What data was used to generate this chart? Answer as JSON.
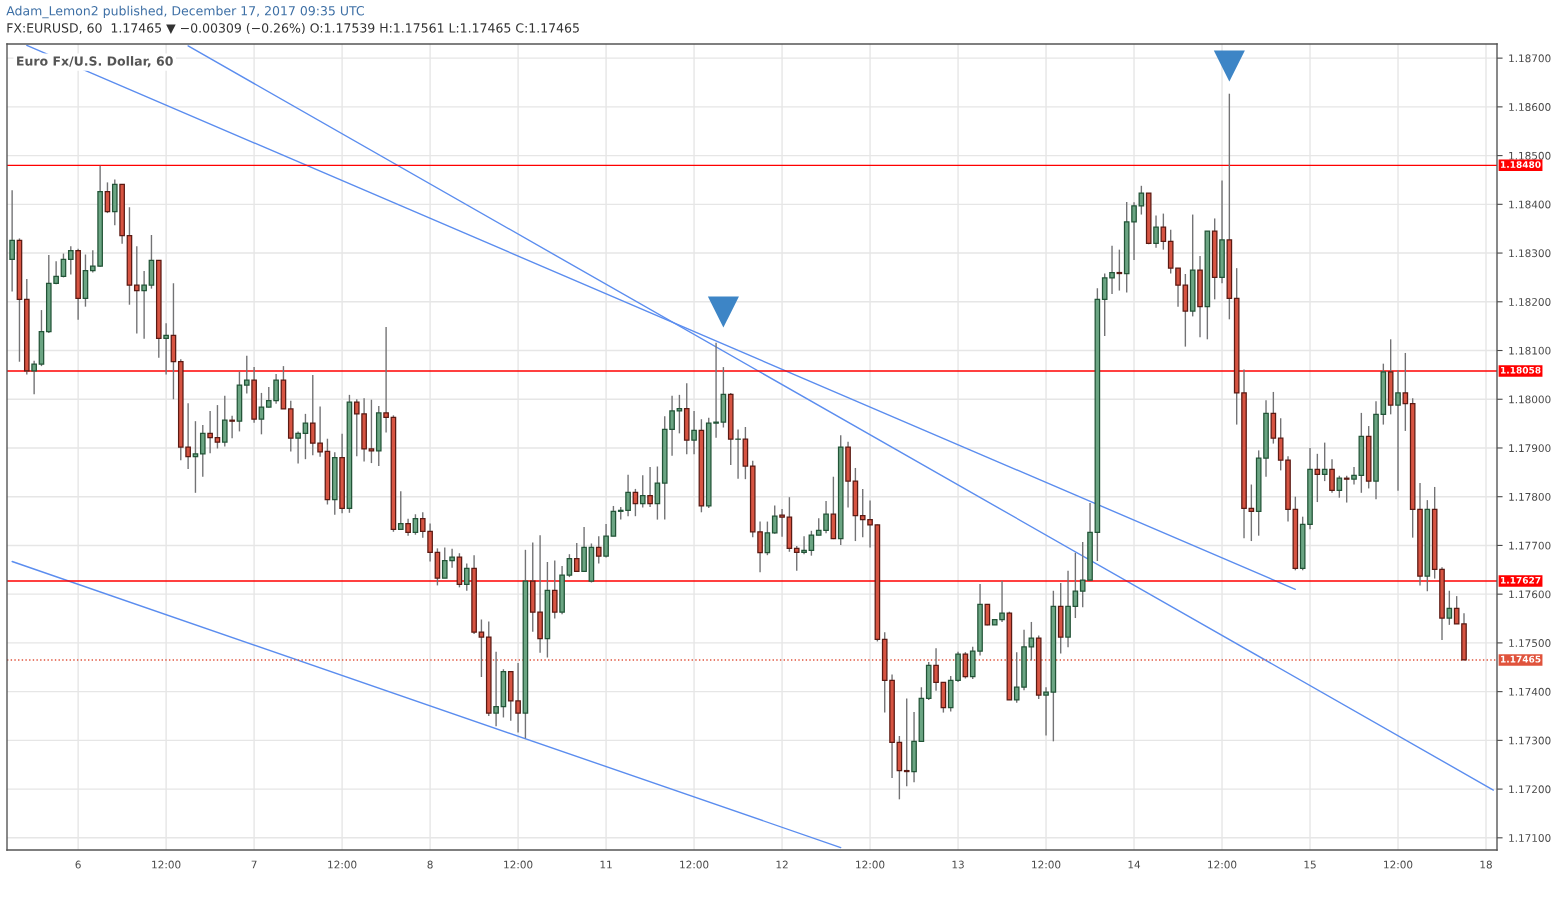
{
  "chart_data": {
    "type": "candlestick",
    "title": "Adam_Lemon2 published, December 17, 2017 09:35 UTC",
    "subtitle": "FX:EURUSD, 60  1.17465 ▼ −0.00309 (−0.26%) O:1.17539 H:1.17561 L:1.17465 C:1.17465",
    "annotations": [
      "Euro Fx/U.S. Dollar, 60"
    ],
    "categories": [
      null,
      null,
      null,
      null,
      null,
      null,
      null,
      null,
      null,
      "6",
      null,
      null,
      null,
      null,
      null,
      null,
      null,
      null,
      null,
      null,
      null,
      "12:00",
      null,
      null,
      null,
      null,
      null,
      null,
      null,
      null,
      null,
      null,
      null,
      "7",
      null,
      null,
      null,
      null,
      null,
      null,
      null,
      null,
      null,
      null,
      null,
      "12:00",
      null,
      null,
      null,
      null,
      null,
      null,
      null,
      null,
      null,
      null,
      null,
      "8",
      null,
      null,
      null,
      null,
      null,
      null,
      null,
      null,
      null,
      null,
      null,
      "12:00",
      null,
      null,
      null,
      null,
      null,
      null,
      null,
      null,
      null,
      null,
      null,
      "11",
      null,
      null,
      null,
      null,
      null,
      null,
      null,
      null,
      null,
      null,
      null,
      "12:00",
      null,
      null,
      null,
      null,
      null,
      null,
      null,
      null,
      null,
      null,
      null,
      "12",
      null,
      null,
      null,
      null,
      null,
      null,
      null,
      null,
      null,
      null,
      null,
      "12:00",
      null,
      null,
      null,
      null,
      null,
      null,
      null,
      null,
      null,
      null,
      null,
      "13",
      null,
      null,
      null,
      null,
      null,
      null,
      null,
      null,
      null,
      null,
      null,
      "12:00",
      null,
      null,
      null,
      null,
      null,
      null,
      null,
      null,
      null,
      null,
      null,
      "14",
      null,
      null,
      null,
      null,
      null,
      null,
      null,
      null,
      null,
      null,
      null,
      "12:00",
      null,
      null,
      null,
      null,
      null,
      null,
      null,
      null,
      null,
      null,
      null,
      "15",
      null,
      null,
      null,
      null,
      null,
      null,
      null,
      null,
      null,
      null,
      null,
      "12:00",
      null,
      null,
      null,
      null,
      null,
      null,
      null,
      null,
      null,
      null,
      null,
      "18",
      null
    ],
    "ohlc": [
      [
        1.18287,
        1.18429,
        1.18221,
        1.18326
      ],
      [
        1.18326,
        1.1833,
        1.18077,
        1.18205
      ],
      [
        1.18205,
        1.18247,
        1.18051,
        1.18058
      ],
      [
        1.18058,
        1.18079,
        1.1801,
        1.18072
      ],
      [
        1.18072,
        1.18183,
        1.18068,
        1.18139
      ],
      [
        1.18139,
        1.18296,
        1.18136,
        1.18238
      ],
      [
        1.18238,
        1.18283,
        1.18236,
        1.18252
      ],
      [
        1.18252,
        1.18299,
        1.1825,
        1.18287
      ],
      [
        1.18287,
        1.18314,
        1.18256,
        1.18305
      ],
      [
        1.18305,
        1.18309,
        1.18163,
        1.18207
      ],
      [
        1.18207,
        1.18297,
        1.1819,
        1.18264
      ],
      [
        1.18264,
        1.18306,
        1.1826,
        1.18273
      ],
      [
        1.18273,
        1.18479,
        1.18272,
        1.18426
      ],
      [
        1.18426,
        1.18445,
        1.18382,
        1.18385
      ],
      [
        1.18385,
        1.18451,
        1.18357,
        1.18441
      ],
      [
        1.18441,
        1.18441,
        1.18319,
        1.18336
      ],
      [
        1.18336,
        1.18394,
        1.18194,
        1.18234
      ],
      [
        1.18234,
        1.18314,
        1.18135,
        1.18223
      ],
      [
        1.18223,
        1.18263,
        1.18124,
        1.18234
      ],
      [
        1.18234,
        1.18337,
        1.18227,
        1.18285
      ],
      [
        1.18285,
        1.18285,
        1.18085,
        1.18125
      ],
      [
        1.18125,
        1.18156,
        1.18051,
        1.18131
      ],
      [
        1.18131,
        1.18238,
        1.18,
        1.18077
      ],
      [
        1.18077,
        1.18082,
        1.17875,
        1.17902
      ],
      [
        1.17902,
        1.17992,
        1.17857,
        1.17882
      ],
      [
        1.17882,
        1.17955,
        1.17808,
        1.17888
      ],
      [
        1.17888,
        1.17947,
        1.17841,
        1.1793
      ],
      [
        1.1793,
        1.17976,
        1.17889,
        1.17921
      ],
      [
        1.17921,
        1.17988,
        1.17899,
        1.17912
      ],
      [
        1.17912,
        1.18007,
        1.17903,
        1.17957
      ],
      [
        1.17957,
        1.17966,
        1.1792,
        1.17955
      ],
      [
        1.17955,
        1.18057,
        1.17934,
        1.18029
      ],
      [
        1.18029,
        1.18089,
        1.18012,
        1.18039
      ],
      [
        1.18039,
        1.18066,
        1.17952,
        1.17959
      ],
      [
        1.17959,
        1.18013,
        1.17928,
        1.17984
      ],
      [
        1.17984,
        1.18025,
        1.17983,
        1.17997
      ],
      [
        1.17997,
        1.18052,
        1.17991,
        1.18039
      ],
      [
        1.18039,
        1.18068,
        1.1798,
        1.1798
      ],
      [
        1.1798,
        1.17997,
        1.17893,
        1.1792
      ],
      [
        1.1792,
        1.17934,
        1.17868,
        1.1793
      ],
      [
        1.1793,
        1.1797,
        1.17877,
        1.17951
      ],
      [
        1.17951,
        1.1805,
        1.17885,
        1.1791
      ],
      [
        1.1791,
        1.17985,
        1.17882,
        1.17892
      ],
      [
        1.17893,
        1.17919,
        1.17784,
        1.17794
      ],
      [
        1.17794,
        1.17891,
        1.17763,
        1.1788
      ],
      [
        1.1788,
        1.17929,
        1.17766,
        1.17776
      ],
      [
        1.17776,
        1.18009,
        1.17767,
        1.17994
      ],
      [
        1.17994,
        1.18,
        1.17883,
        1.1797
      ],
      [
        1.1797,
        1.18002,
        1.17872,
        1.17898
      ],
      [
        1.17898,
        1.17999,
        1.17869,
        1.17894
      ],
      [
        1.17894,
        1.17986,
        1.17863,
        1.17972
      ],
      [
        1.17972,
        1.18148,
        1.17932,
        1.17963
      ],
      [
        1.17963,
        1.17967,
        1.17728,
        1.17733
      ],
      [
        1.17733,
        1.17811,
        1.17733,
        1.17745
      ],
      [
        1.17745,
        1.17755,
        1.1772,
        1.17727
      ],
      [
        1.17727,
        1.17764,
        1.17722,
        1.17755
      ],
      [
        1.17755,
        1.17768,
        1.17716,
        1.17729
      ],
      [
        1.17729,
        1.17745,
        1.17667,
        1.17686
      ],
      [
        1.17686,
        1.17694,
        1.17618,
        1.17633
      ],
      [
        1.17633,
        1.17696,
        1.17633,
        1.17669
      ],
      [
        1.17669,
        1.17693,
        1.17654,
        1.17676
      ],
      [
        1.17676,
        1.17684,
        1.17614,
        1.1762
      ],
      [
        1.1762,
        1.17663,
        1.17607,
        1.17653
      ],
      [
        1.17653,
        1.1768,
        1.17518,
        1.17522
      ],
      [
        1.17522,
        1.17548,
        1.1743,
        1.17512
      ],
      [
        1.17512,
        1.17544,
        1.1735,
        1.17356
      ],
      [
        1.17356,
        1.17482,
        1.17329,
        1.17369
      ],
      [
        1.17369,
        1.17446,
        1.17347,
        1.17441
      ],
      [
        1.17441,
        1.17441,
        1.1734,
        1.17381
      ],
      [
        1.17381,
        1.17459,
        1.17316,
        1.17356
      ],
      [
        1.17356,
        1.17691,
        1.17304,
        1.17627
      ],
      [
        1.17627,
        1.17706,
        1.17523,
        1.17563
      ],
      [
        1.17563,
        1.17721,
        1.1748,
        1.17509
      ],
      [
        1.17509,
        1.17666,
        1.1747,
        1.17608
      ],
      [
        1.17608,
        1.17669,
        1.1755,
        1.17563
      ],
      [
        1.17563,
        1.17658,
        1.17559,
        1.17639
      ],
      [
        1.17639,
        1.17682,
        1.17635,
        1.17673
      ],
      [
        1.17673,
        1.17705,
        1.17647,
        1.17647
      ],
      [
        1.17647,
        1.17738,
        1.17647,
        1.17696
      ],
      [
        1.17627,
        1.17704,
        1.17624,
        1.17696
      ],
      [
        1.17696,
        1.17719,
        1.17663,
        1.17678
      ],
      [
        1.17678,
        1.17744,
        1.17675,
        1.17719
      ],
      [
        1.17719,
        1.17781,
        1.17719,
        1.1777
      ],
      [
        1.1777,
        1.17779,
        1.17753,
        1.17772
      ],
      [
        1.17772,
        1.17845,
        1.1776,
        1.17809
      ],
      [
        1.17809,
        1.17816,
        1.1776,
        1.17786
      ],
      [
        1.17786,
        1.17844,
        1.17778,
        1.17802
      ],
      [
        1.17802,
        1.17861,
        1.17779,
        1.17786
      ],
      [
        1.17786,
        1.17862,
        1.17753,
        1.17828
      ],
      [
        1.17828,
        1.17965,
        1.17753,
        1.17938
      ],
      [
        1.17938,
        1.18007,
        1.17884,
        1.17976
      ],
      [
        1.17976,
        1.18009,
        1.1793,
        1.17981
      ],
      [
        1.17981,
        1.18033,
        1.17887,
        1.17916
      ],
      [
        1.17916,
        1.17976,
        1.17887,
        1.17936
      ],
      [
        1.17936,
        1.17959,
        1.17768,
        1.17781
      ],
      [
        1.17781,
        1.17962,
        1.17777,
        1.17951
      ],
      [
        1.17951,
        1.18116,
        1.17921,
        1.17953
      ],
      [
        1.17953,
        1.18066,
        1.17942,
        1.1801
      ],
      [
        1.1801,
        1.18013,
        1.17865,
        1.17918
      ],
      [
        1.17918,
        1.17938,
        1.17837,
        1.17918
      ],
      [
        1.17918,
        1.17943,
        1.17836,
        1.17863
      ],
      [
        1.17863,
        1.17874,
        1.17717,
        1.17728
      ],
      [
        1.17728,
        1.17749,
        1.17645,
        1.17685
      ],
      [
        1.17685,
        1.17749,
        1.1768,
        1.17726
      ],
      [
        1.17726,
        1.17782,
        1.17724,
        1.1776
      ],
      [
        1.17762,
        1.17775,
        1.17718,
        1.17758
      ],
      [
        1.17758,
        1.17799,
        1.17687,
        1.17694
      ],
      [
        1.17694,
        1.17699,
        1.17648,
        1.17686
      ],
      [
        1.17686,
        1.17719,
        1.17682,
        1.1769
      ],
      [
        1.1769,
        1.1773,
        1.17679,
        1.17721
      ],
      [
        1.17721,
        1.17756,
        1.17721,
        1.17731
      ],
      [
        1.17731,
        1.17791,
        1.17725,
        1.17764
      ],
      [
        1.17764,
        1.17841,
        1.17713,
        1.17714
      ],
      [
        1.17714,
        1.17926,
        1.17701,
        1.17902
      ],
      [
        1.17902,
        1.17913,
        1.17778,
        1.17832
      ],
      [
        1.17832,
        1.17859,
        1.17709,
        1.17761
      ],
      [
        1.17761,
        1.17816,
        1.17717,
        1.17753
      ],
      [
        1.17753,
        1.17792,
        1.17696,
        1.17742
      ],
      [
        1.17742,
        1.17743,
        1.17503,
        1.17507
      ],
      [
        1.17507,
        1.17522,
        1.17357,
        1.17423
      ],
      [
        1.17423,
        1.17435,
        1.17223,
        1.17296
      ],
      [
        1.17296,
        1.17309,
        1.17179,
        1.17238
      ],
      [
        1.17238,
        1.17386,
        1.17206,
        1.17236
      ],
      [
        1.17236,
        1.17358,
        1.17214,
        1.17298
      ],
      [
        1.17298,
        1.17409,
        1.17298,
        1.17386
      ],
      [
        1.17386,
        1.17461,
        1.17383,
        1.17454
      ],
      [
        1.17454,
        1.17489,
        1.17402,
        1.17419
      ],
      [
        1.17419,
        1.17419,
        1.17357,
        1.17367
      ],
      [
        1.17367,
        1.17432,
        1.17359,
        1.17423
      ],
      [
        1.17423,
        1.17482,
        1.1742,
        1.17477
      ],
      [
        1.17477,
        1.17481,
        1.17427,
        1.17431
      ],
      [
        1.17431,
        1.17492,
        1.17426,
        1.17483
      ],
      [
        1.17483,
        1.17621,
        1.17474,
        1.17579
      ],
      [
        1.17579,
        1.17579,
        1.17536,
        1.17537
      ],
      [
        1.17537,
        1.17548,
        1.17537,
        1.17548
      ],
      [
        1.17548,
        1.17627,
        1.17543,
        1.17561
      ],
      [
        1.17561,
        1.17564,
        1.17383,
        1.17383
      ],
      [
        1.17383,
        1.17481,
        1.17377,
        1.17409
      ],
      [
        1.17409,
        1.17527,
        1.17403,
        1.17492
      ],
      [
        1.17492,
        1.17543,
        1.17464,
        1.1751
      ],
      [
        1.1751,
        1.17515,
        1.17385,
        1.17393
      ],
      [
        1.17393,
        1.17409,
        1.1731,
        1.17399
      ],
      [
        1.17399,
        1.17607,
        1.17298,
        1.17575
      ],
      [
        1.17575,
        1.17623,
        1.17478,
        1.17512
      ],
      [
        1.17512,
        1.17648,
        1.17491,
        1.17575
      ],
      [
        1.17575,
        1.17685,
        1.17551,
        1.17606
      ],
      [
        1.17606,
        1.17707,
        1.17573,
        1.17629
      ],
      [
        1.17629,
        1.17787,
        1.17629,
        1.17727
      ],
      [
        1.17727,
        1.18228,
        1.17668,
        1.18205
      ],
      [
        1.18205,
        1.18258,
        1.1813,
        1.18249
      ],
      [
        1.18249,
        1.18315,
        1.18216,
        1.1826
      ],
      [
        1.1826,
        1.18307,
        1.18223,
        1.18258
      ],
      [
        1.18258,
        1.18405,
        1.18219,
        1.18364
      ],
      [
        1.18364,
        1.18404,
        1.18286,
        1.18397
      ],
      [
        1.18397,
        1.18438,
        1.18379,
        1.18423
      ],
      [
        1.18423,
        1.18423,
        1.18318,
        1.1832
      ],
      [
        1.1832,
        1.18377,
        1.18311,
        1.18353
      ],
      [
        1.18353,
        1.18381,
        1.18307,
        1.18324
      ],
      [
        1.18324,
        1.18348,
        1.18258,
        1.18269
      ],
      [
        1.18269,
        1.18269,
        1.1819,
        1.18234
      ],
      [
        1.18234,
        1.18257,
        1.18108,
        1.18181
      ],
      [
        1.18181,
        1.18379,
        1.1817,
        1.18265
      ],
      [
        1.18265,
        1.18294,
        1.18127,
        1.1819
      ],
      [
        1.1819,
        1.18345,
        1.18123,
        1.18345
      ],
      [
        1.18345,
        1.18371,
        1.18205,
        1.1825
      ],
      [
        1.1825,
        1.18449,
        1.18238,
        1.18327
      ],
      [
        1.18327,
        1.18627,
        1.18164,
        1.18207
      ],
      [
        1.18207,
        1.18269,
        1.17948,
        1.18013
      ],
      [
        1.18013,
        1.18061,
        1.17715,
        1.17776
      ],
      [
        1.17776,
        1.17825,
        1.17709,
        1.1777
      ],
      [
        1.1777,
        1.17895,
        1.1772,
        1.17879
      ],
      [
        1.17879,
        1.17998,
        1.17841,
        1.17971
      ],
      [
        1.17971,
        1.18015,
        1.17909,
        1.1792
      ],
      [
        1.1792,
        1.17961,
        1.17854,
        1.17875
      ],
      [
        1.17875,
        1.17883,
        1.17749,
        1.17774
      ],
      [
        1.17774,
        1.178,
        1.17649,
        1.17653
      ],
      [
        1.17653,
        1.17759,
        1.17649,
        1.17743
      ],
      [
        1.17743,
        1.179,
        1.17733,
        1.17856
      ],
      [
        1.17856,
        1.17888,
        1.17789,
        1.17846
      ],
      [
        1.17846,
        1.17911,
        1.17832,
        1.17856
      ],
      [
        1.17856,
        1.17877,
        1.17808,
        1.17813
      ],
      [
        1.17813,
        1.17843,
        1.17798,
        1.17838
      ],
      [
        1.17838,
        1.17843,
        1.17788,
        1.17836
      ],
      [
        1.17836,
        1.17861,
        1.17825,
        1.17844
      ],
      [
        1.17844,
        1.17972,
        1.17808,
        1.17924
      ],
      [
        1.17924,
        1.17945,
        1.17817,
        1.17832
      ],
      [
        1.17832,
        1.17996,
        1.17795,
        1.17969
      ],
      [
        1.17969,
        1.18073,
        1.17948,
        1.18056
      ],
      [
        1.18056,
        1.18123,
        1.17969,
        1.17988
      ],
      [
        1.17988,
        1.1806,
        1.17812,
        1.18013
      ],
      [
        1.18013,
        1.18095,
        1.17935,
        1.17991
      ],
      [
        1.17991,
        1.18002,
        1.17716,
        1.17774
      ],
      [
        1.17774,
        1.17828,
        1.17618,
        1.17637
      ],
      [
        1.17637,
        1.17793,
        1.17606,
        1.17774
      ],
      [
        1.17774,
        1.1782,
        1.17632,
        1.17651
      ],
      [
        1.17651,
        1.17655,
        1.17506,
        1.17551
      ],
      [
        1.17551,
        1.17607,
        1.17537,
        1.17571
      ],
      [
        1.17571,
        1.17596,
        1.17539,
        1.17539
      ],
      [
        1.17539,
        1.17561,
        1.17465,
        1.17465
      ],
      null,
      null,
      null,
      null
    ],
    "series": [
      {
        "type": "line",
        "color": "#5b8def",
        "values": [
          null,
          null,
          1.18726,
          null,
          null,
          null,
          null,
          null,
          null,
          null,
          null,
          null,
          null,
          null,
          null,
          null,
          null,
          null,
          null,
          null,
          null,
          null,
          null,
          null,
          null,
          null,
          null,
          null,
          null,
          null,
          null,
          null,
          null,
          null,
          null,
          null,
          null,
          null,
          null,
          null,
          null,
          null,
          null,
          null,
          null,
          null,
          null,
          null,
          null,
          null,
          null,
          null,
          null,
          null,
          null,
          null,
          null,
          null,
          null,
          null,
          null,
          null,
          null,
          null,
          null,
          null,
          null,
          null,
          null,
          null,
          null,
          null,
          null,
          null,
          null,
          null,
          null,
          null,
          null,
          null,
          null,
          null,
          null,
          null,
          null,
          null,
          null,
          null,
          null,
          null,
          null,
          null,
          null,
          null,
          null,
          null,
          null,
          null,
          null,
          null,
          null,
          null,
          null,
          null,
          null,
          null,
          null,
          null,
          null,
          null,
          null,
          null,
          null,
          null,
          null,
          null,
          null,
          null,
          null,
          null,
          null,
          null,
          null,
          null,
          null,
          null,
          null,
          null,
          null,
          null,
          null,
          null,
          null,
          null,
          null,
          null,
          null,
          null,
          null,
          null,
          null,
          null,
          null,
          null,
          null,
          null,
          null,
          null,
          null,
          null,
          null,
          null,
          null,
          null,
          null,
          null,
          null,
          null,
          null,
          null,
          null,
          null,
          null,
          null,
          null,
          null,
          null,
          null,
          null,
          null,
          null,
          null,
          null,
          null,
          null,
          1.1761,
          null,
          null,
          null,
          null,
          null,
          null,
          null,
          null,
          null,
          null,
          null,
          null,
          null,
          null,
          null,
          null,
          null,
          null,
          null,
          null,
          null,
          null,
          null,
          null,
          null,
          null,
          null
        ]
      },
      {
        "type": "line",
        "color": "#5b8def",
        "values": [
          null,
          null,
          null,
          null,
          null,
          null,
          null,
          null,
          null,
          null,
          null,
          null,
          null,
          null,
          null,
          null,
          null,
          null,
          null,
          null,
          null,
          null,
          null,
          null,
          1.18725,
          null,
          null,
          null,
          null,
          null,
          null,
          null,
          null,
          null,
          null,
          null,
          null,
          null,
          null,
          null,
          null,
          null,
          null,
          null,
          null,
          null,
          null,
          null,
          null,
          null,
          null,
          null,
          null,
          null,
          null,
          null,
          null,
          null,
          null,
          null,
          null,
          null,
          null,
          null,
          null,
          null,
          null,
          null,
          null,
          null,
          null,
          null,
          null,
          null,
          null,
          null,
          null,
          null,
          null,
          null,
          null,
          null,
          null,
          null,
          null,
          null,
          null,
          null,
          null,
          null,
          null,
          null,
          null,
          null,
          null,
          null,
          null,
          null,
          null,
          null,
          null,
          null,
          null,
          null,
          null,
          null,
          null,
          null,
          null,
          null,
          null,
          null,
          null,
          null,
          null,
          null,
          null,
          null,
          null,
          null,
          null,
          null,
          null,
          null,
          null,
          null,
          null,
          null,
          null,
          null,
          null,
          null,
          null,
          null,
          null,
          null,
          null,
          null,
          null,
          null,
          null,
          null,
          null,
          null,
          null,
          null,
          null,
          null,
          null,
          null,
          null,
          null,
          null,
          null,
          null,
          null,
          null,
          null,
          null,
          null,
          null,
          null,
          null,
          null,
          null,
          null,
          null,
          null,
          null,
          null,
          null,
          null,
          null,
          null,
          null,
          null,
          null,
          null,
          null,
          null,
          null,
          null,
          null,
          null,
          null,
          null,
          null,
          null,
          null,
          null,
          null,
          null,
          null,
          null,
          null,
          null,
          null,
          null,
          null,
          null,
          null,
          null,
          1.17198
        ]
      },
      {
        "type": "line",
        "color": "#5b8def",
        "values": [
          1.17667,
          null,
          null,
          null,
          null,
          null,
          null,
          null,
          null,
          null,
          null,
          null,
          null,
          null,
          null,
          null,
          null,
          null,
          null,
          null,
          null,
          null,
          null,
          null,
          null,
          null,
          null,
          null,
          null,
          null,
          null,
          null,
          null,
          null,
          null,
          null,
          null,
          null,
          null,
          null,
          null,
          null,
          null,
          null,
          null,
          null,
          null,
          null,
          null,
          null,
          null,
          null,
          null,
          null,
          null,
          null,
          null,
          null,
          null,
          null,
          null,
          null,
          null,
          null,
          null,
          null,
          null,
          null,
          null,
          null,
          null,
          null,
          null,
          null,
          null,
          null,
          null,
          null,
          null,
          null,
          null,
          null,
          null,
          null,
          null,
          null,
          null,
          null,
          null,
          null,
          null,
          null,
          null,
          null,
          null,
          null,
          null,
          null,
          null,
          null,
          null,
          null,
          null,
          null,
          null,
          null,
          null,
          null,
          null,
          null,
          null,
          null,
          null,
          1.1708,
          null,
          null,
          null,
          null,
          null,
          null,
          null,
          null,
          null,
          null,
          null,
          null,
          null,
          null,
          null,
          null,
          null,
          null,
          null,
          null,
          null,
          null,
          null,
          null,
          null,
          null,
          null,
          null,
          null,
          null,
          null,
          null,
          null,
          null,
          null,
          null,
          null,
          null,
          null,
          null,
          null,
          null,
          null,
          null,
          null,
          null,
          null,
          null,
          null,
          null,
          null,
          null,
          null,
          null,
          null,
          null,
          null,
          null,
          null,
          null,
          null,
          null,
          null,
          null,
          null,
          null,
          null,
          null,
          null,
          null,
          null,
          null,
          null,
          null,
          null,
          null,
          null,
          null,
          null,
          null,
          null,
          null,
          null,
          null,
          null,
          null,
          null,
          null,
          null
        ]
      },
      {
        "type": "scatter",
        "marker": "triangle",
        "color": "#3d85c6",
        "values": [
          null,
          null,
          null,
          null,
          null,
          null,
          null,
          null,
          null,
          null,
          null,
          null,
          null,
          null,
          null,
          null,
          null,
          null,
          null,
          null,
          null,
          null,
          null,
          null,
          null,
          null,
          null,
          null,
          null,
          null,
          null,
          null,
          null,
          null,
          null,
          null,
          null,
          null,
          null,
          null,
          null,
          null,
          null,
          null,
          null,
          null,
          null,
          null,
          null,
          null,
          null,
          null,
          null,
          null,
          null,
          null,
          null,
          null,
          null,
          null,
          null,
          null,
          null,
          null,
          null,
          null,
          null,
          null,
          null,
          null,
          null,
          null,
          null,
          null,
          null,
          null,
          null,
          null,
          null,
          null,
          null,
          null,
          null,
          null,
          null,
          null,
          null,
          null,
          null,
          null,
          null,
          null,
          null,
          null,
          null,
          null,
          null,
          1.18179,
          null,
          null,
          null,
          null,
          null,
          null,
          null,
          null,
          null,
          null,
          null,
          null,
          null,
          null,
          null,
          null,
          null,
          null,
          null,
          null,
          null,
          null,
          null,
          null,
          null,
          null,
          null,
          null,
          null,
          null,
          null,
          null,
          null,
          null,
          null,
          null,
          null,
          null,
          null,
          null,
          null,
          null,
          null,
          null,
          null,
          null,
          null,
          null,
          null,
          null,
          null,
          null,
          null,
          null,
          null,
          null,
          null,
          null,
          null,
          null,
          null,
          null,
          null,
          null,
          null,
          null,
          null,
          null,
          1.18684,
          null,
          null,
          null,
          null,
          null,
          null,
          null,
          null,
          null,
          null,
          null,
          null,
          null,
          null,
          null,
          null,
          null,
          null,
          null,
          null,
          null,
          null,
          null,
          null,
          null,
          null,
          null,
          null,
          null,
          null,
          null,
          null,
          null,
          null,
          null,
          null
        ]
      }
    ],
    "ylim": [
      1.17075,
      1.18729
    ],
    "yticks": [
      {
        "value": 1.171,
        "label": "1.17100"
      },
      {
        "value": 1.172,
        "label": "1.17200"
      },
      {
        "value": 1.173,
        "label": "1.17300"
      },
      {
        "value": 1.174,
        "label": "1.17400"
      },
      {
        "value": 1.175,
        "label": "1.17500"
      },
      {
        "value": 1.176,
        "label": "1.17600"
      },
      {
        "value": 1.177,
        "label": "1.17700"
      },
      {
        "value": 1.178,
        "label": "1.17800"
      },
      {
        "value": 1.179,
        "label": "1.17900"
      },
      {
        "value": 1.18,
        "label": "1.18000"
      },
      {
        "value": 1.181,
        "label": "1.18100"
      },
      {
        "value": 1.182,
        "label": "1.18200"
      },
      {
        "value": 1.183,
        "label": "1.18300"
      },
      {
        "value": 1.184,
        "label": "1.18400"
      },
      {
        "value": 1.185,
        "label": "1.18500"
      },
      {
        "value": 1.186,
        "label": "1.18600"
      },
      {
        "value": 1.187,
        "label": "1.18700"
      }
    ],
    "ref_lines": [
      {
        "axis": "y",
        "value": 1.1848,
        "label": "1.18480",
        "color": "#ff0000"
      },
      {
        "axis": "y",
        "value": 1.18058,
        "label": "1.18058",
        "color": "#ff0000"
      },
      {
        "axis": "y",
        "value": 1.17627,
        "label": "1.17627",
        "color": "#ff0000"
      },
      {
        "axis": "y",
        "value": 1.17465,
        "label": "1.17465",
        "color": "#e0533c",
        "line_style": "dotted"
      }
    ],
    "grid": true
  }
}
